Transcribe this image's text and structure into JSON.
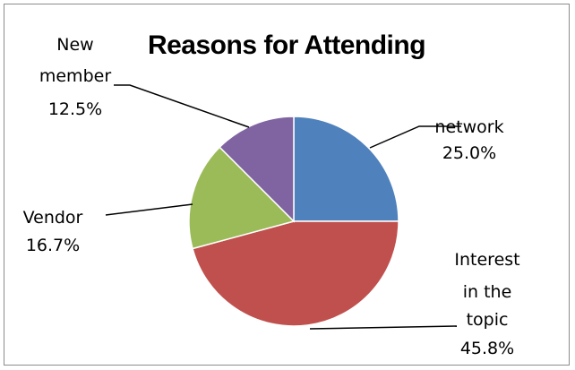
{
  "chart_data": {
    "type": "pie",
    "title": "Reasons for Attending",
    "slices": [
      {
        "label": "network",
        "value": 25.0,
        "pct_label": "25.0%",
        "color": "#4f81bd"
      },
      {
        "label": "Interest in the topic",
        "value": 45.8,
        "pct_label": "45.8%",
        "color": "#c0504d"
      },
      {
        "label": "Vendor",
        "value": 16.7,
        "pct_label": "16.7%",
        "color": "#9bbb59"
      },
      {
        "label": "New member",
        "value": 12.5,
        "pct_label": "12.5%",
        "color": "#8064a2"
      }
    ],
    "start_angle": "12 o'clock",
    "direction": "clockwise",
    "legend": "none (data labels with leader lines)"
  }
}
